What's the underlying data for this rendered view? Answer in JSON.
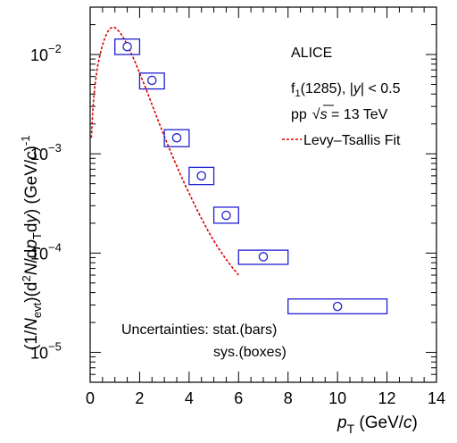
{
  "chart_data": {
    "type": "scatter",
    "xlabel_main": "p",
    "xlabel_sub": "T",
    "xlabel_unit": " (GeV/",
    "xlabel_unit_c": "c",
    "xlabel_close": ")",
    "ylabel": "(1/Nevt)(d²N/dpTdy) (GeV/c)⁻¹",
    "xlim": [
      0,
      14
    ],
    "ylim": [
      5e-06,
      0.03
    ],
    "yscale": "log",
    "x_ticks": [
      "0",
      "2",
      "4",
      "6",
      "8",
      "10",
      "12",
      "14"
    ],
    "y_ticks": [
      {
        "base": "10",
        "exp": "−5"
      },
      {
        "base": "10",
        "exp": "−4"
      },
      {
        "base": "10",
        "exp": "−3"
      },
      {
        "base": "10",
        "exp": "−2"
      }
    ],
    "points": [
      {
        "x": 1.5,
        "y": 0.012,
        "xlo": 1.0,
        "xhi": 2.0,
        "syslo": 0.01,
        "syshi": 0.0143,
        "statlo": 0.0111,
        "stathi": 0.013
      },
      {
        "x": 2.5,
        "y": 0.0055,
        "xlo": 2.0,
        "xhi": 3.0,
        "syslo": 0.0045,
        "syshi": 0.0065,
        "statlo": 0.0051,
        "stathi": 0.0059
      },
      {
        "x": 3.5,
        "y": 0.00145,
        "xlo": 3.0,
        "xhi": 4.0,
        "syslo": 0.00118,
        "syshi": 0.00175,
        "statlo": 0.00134,
        "stathi": 0.00156
      },
      {
        "x": 4.5,
        "y": 0.0006,
        "xlo": 4.0,
        "xhi": 5.0,
        "syslo": 0.00049,
        "syshi": 0.00073,
        "statlo": 0.00055,
        "stathi": 0.00065
      },
      {
        "x": 5.5,
        "y": 0.00024,
        "xlo": 5.0,
        "xhi": 6.0,
        "syslo": 0.0002,
        "syshi": 0.00029,
        "statlo": 0.00022,
        "stathi": 0.00026
      },
      {
        "x": 7.0,
        "y": 9.2e-05,
        "xlo": 6.0,
        "xhi": 8.0,
        "syslo": 7.7e-05,
        "syshi": 0.000107,
        "statlo": 8.3e-05,
        "stathi": 0.000101
      },
      {
        "x": 10.0,
        "y": 2.9e-05,
        "xlo": 8.0,
        "xhi": 12.0,
        "syslo": 2.45e-05,
        "syshi": 3.45e-05,
        "statlo": 2.62e-05,
        "stathi": 3.22e-05
      }
    ],
    "fit": {
      "name": "Levy–Tsallis Fit",
      "x": [
        0.05,
        0.1,
        0.15,
        0.2,
        0.3,
        0.4,
        0.5,
        0.6,
        0.7,
        0.8,
        0.9,
        1.0,
        1.2,
        1.4,
        1.6,
        1.8,
        2.0,
        2.2,
        2.4,
        2.6,
        2.8,
        3.0,
        3.2,
        3.4,
        3.6,
        3.8,
        4.0,
        4.2,
        4.4,
        4.6,
        4.8,
        5.0,
        5.2,
        5.4,
        5.6,
        5.8,
        6.0
      ],
      "y": [
        0.00145,
        0.0026,
        0.0038,
        0.005,
        0.0076,
        0.01,
        0.0125,
        0.0148,
        0.0168,
        0.0182,
        0.0188,
        0.0187,
        0.0168,
        0.014,
        0.0111,
        0.0086,
        0.0065,
        0.0049,
        0.00365,
        0.0027,
        0.002,
        0.0015,
        0.00113,
        0.00086,
        0.00066,
        0.00051,
        0.0004,
        0.000315,
        0.00025,
        0.0002,
        0.000162,
        0.000133,
        0.000111,
        9.35e-05,
        8e-05,
        6.9e-05,
        6e-05
      ]
    },
    "annotations": {
      "experiment": "ALICE",
      "particle": "f",
      "particle_sub": "1",
      "mass": "(1285), |",
      "rap_var": "y",
      "rap_cut": "| < 0.5",
      "system": "pp",
      "sqrt": "√",
      "s_var": "s",
      "energy": " = 13 TeV",
      "fit_label": "Levy–Tsallis Fit",
      "unc_line1": "Uncertainties: stat.(bars)",
      "unc_line2": "sys.(boxes)"
    },
    "colors": {
      "points": "#1f1fd1",
      "fit": "#dd0000",
      "axis": "#000000"
    },
    "grid": false
  }
}
